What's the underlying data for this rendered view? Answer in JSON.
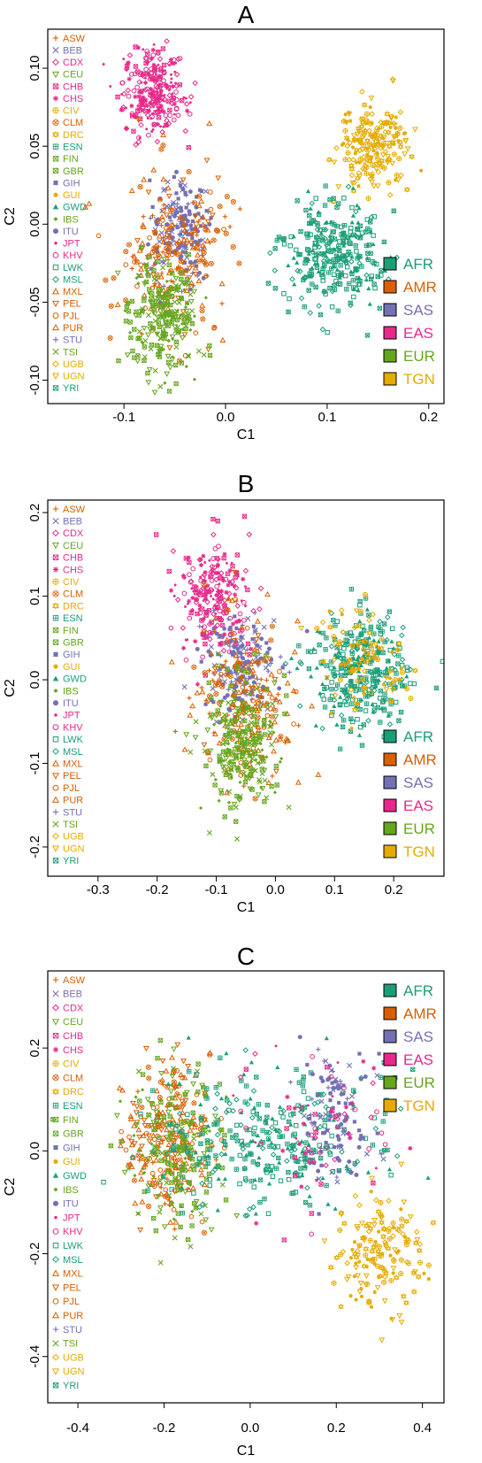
{
  "colors": {
    "AFR": "#1b9e77",
    "AMR": "#d95f02",
    "SAS": "#7570b3",
    "EAS": "#e7298a",
    "EUR": "#66a61e",
    "TGN": "#e6ab02"
  },
  "populations": [
    {
      "code": "ASW",
      "group": "AMR",
      "symbol": "plus"
    },
    {
      "code": "BEB",
      "group": "SAS",
      "symbol": "cross"
    },
    {
      "code": "CDX",
      "group": "EAS",
      "symbol": "diamond"
    },
    {
      "code": "CEU",
      "group": "EUR",
      "symbol": "triangle-down"
    },
    {
      "code": "CHB",
      "group": "EAS",
      "symbol": "square-x"
    },
    {
      "code": "CHS",
      "group": "EAS",
      "symbol": "asterisk"
    },
    {
      "code": "CIV",
      "group": "TGN",
      "symbol": "circle-plus"
    },
    {
      "code": "CLM",
      "group": "AMR",
      "symbol": "circle-x"
    },
    {
      "code": "DRC",
      "group": "TGN",
      "symbol": "star-of-david"
    },
    {
      "code": "ESN",
      "group": "AFR",
      "symbol": "square-plus"
    },
    {
      "code": "FIN",
      "group": "EUR",
      "symbol": "square-x"
    },
    {
      "code": "GBR",
      "group": "EUR",
      "symbol": "square-x"
    },
    {
      "code": "GIH",
      "group": "SAS",
      "symbol": "square-filled"
    },
    {
      "code": "GUI",
      "group": "TGN",
      "symbol": "circle-filled"
    },
    {
      "code": "GWD",
      "group": "AFR",
      "symbol": "triangle-filled"
    },
    {
      "code": "IBS",
      "group": "EUR",
      "symbol": "diamond-filled"
    },
    {
      "code": "ITU",
      "group": "SAS",
      "symbol": "circle-filled-big"
    },
    {
      "code": "JPT",
      "group": "EAS",
      "symbol": "dot"
    },
    {
      "code": "KHV",
      "group": "EAS",
      "symbol": "circle"
    },
    {
      "code": "LWK",
      "group": "AFR",
      "symbol": "square"
    },
    {
      "code": "MSL",
      "group": "AFR",
      "symbol": "diamond"
    },
    {
      "code": "MXL",
      "group": "AMR",
      "symbol": "triangle"
    },
    {
      "code": "PEL",
      "group": "AMR",
      "symbol": "triangle-down"
    },
    {
      "code": "PJL",
      "group": "AMR",
      "symbol": "circle"
    },
    {
      "code": "PUR",
      "group": "AMR",
      "symbol": "triangle"
    },
    {
      "code": "STU",
      "group": "SAS",
      "symbol": "plus"
    },
    {
      "code": "TSI",
      "group": "EUR",
      "symbol": "cross"
    },
    {
      "code": "UGB",
      "group": "TGN",
      "symbol": "diamond"
    },
    {
      "code": "UGN",
      "group": "TGN",
      "symbol": "triangle-down"
    },
    {
      "code": "YRI",
      "group": "AFR",
      "symbol": "square-x"
    }
  ],
  "chart_data": [
    {
      "panel": "A",
      "type": "scatter",
      "title": "A",
      "xlabel": "C1",
      "ylabel": "C2",
      "xlim": [
        -0.175,
        0.215
      ],
      "ylim": [
        -0.115,
        0.125
      ],
      "xticks": [
        -0.1,
        0.0,
        0.1,
        0.2
      ],
      "xtick_labels": [
        "-0.1",
        "0.0",
        "0.1",
        "0.2"
      ],
      "yticks": [
        -0.1,
        -0.05,
        0.0,
        0.05,
        0.1
      ],
      "ytick_labels": [
        "-0.10",
        "-0.05",
        "0.00",
        "0.05",
        "0.10"
      ],
      "legend_groups": [
        "AFR",
        "AMR",
        "SAS",
        "EAS",
        "EUR",
        "TGN"
      ],
      "group_legend_position": "bottom-right",
      "population_legend_position": "left",
      "clusters": [
        {
          "group": "EAS",
          "center": [
            -0.07,
            0.085
          ],
          "spread": [
            0.015,
            0.014
          ],
          "count": 260
        },
        {
          "group": "TGN",
          "center": [
            0.145,
            0.05
          ],
          "spread": [
            0.017,
            0.014
          ],
          "count": 200
        },
        {
          "group": "AFR",
          "center": [
            0.105,
            -0.018
          ],
          "spread": [
            0.025,
            0.018
          ],
          "count": 300
        },
        {
          "group": "SAS",
          "center": [
            -0.045,
            -0.005
          ],
          "spread": [
            0.014,
            0.016
          ],
          "count": 170
        },
        {
          "group": "AMR",
          "center": [
            -0.05,
            -0.02
          ],
          "spread": [
            0.028,
            0.026
          ],
          "count": 230
        },
        {
          "group": "EUR",
          "center": [
            -0.062,
            -0.06
          ],
          "spread": [
            0.017,
            0.018
          ],
          "count": 240
        }
      ]
    },
    {
      "panel": "B",
      "type": "scatter",
      "title": "B",
      "xlabel": "C1",
      "ylabel": "C2",
      "xlim": [
        -0.385,
        0.285
      ],
      "ylim": [
        -0.235,
        0.215
      ],
      "xticks": [
        -0.3,
        -0.2,
        -0.1,
        0.0,
        0.1,
        0.2
      ],
      "xtick_labels": [
        "-0.3",
        "-0.2",
        "-0.1",
        "0.0",
        "0.1",
        "0.2"
      ],
      "yticks": [
        -0.2,
        -0.1,
        0.0,
        0.1,
        0.2
      ],
      "ytick_labels": [
        "-0.2",
        "-0.1",
        "0.0",
        "0.1",
        "0.2"
      ],
      "legend_groups": [
        "AFR",
        "AMR",
        "SAS",
        "EAS",
        "EUR",
        "TGN"
      ],
      "group_legend_position": "bottom-right",
      "population_legend_position": "left",
      "clusters": [
        {
          "group": "EAS",
          "center": [
            -0.1,
            0.1
          ],
          "spread": [
            0.03,
            0.035
          ],
          "count": 230
        },
        {
          "group": "AFR",
          "center": [
            0.14,
            0.01
          ],
          "spread": [
            0.04,
            0.035
          ],
          "count": 330
        },
        {
          "group": "TGN",
          "center": [
            0.15,
            0.02
          ],
          "spread": [
            0.035,
            0.035
          ],
          "count": 90
        },
        {
          "group": "SAS",
          "center": [
            -0.06,
            0.02
          ],
          "spread": [
            0.03,
            0.03
          ],
          "count": 170
        },
        {
          "group": "AMR",
          "center": [
            -0.05,
            -0.02
          ],
          "spread": [
            0.045,
            0.045
          ],
          "count": 230
        },
        {
          "group": "EUR",
          "center": [
            -0.06,
            -0.08
          ],
          "spread": [
            0.03,
            0.04
          ],
          "count": 250
        }
      ]
    },
    {
      "panel": "C",
      "type": "scatter",
      "title": "C",
      "xlabel": "C1",
      "ylabel": "C2",
      "xlim": [
        -0.47,
        0.45
      ],
      "ylim": [
        -0.49,
        0.35
      ],
      "xticks": [
        -0.4,
        -0.2,
        0.0,
        0.2,
        0.4
      ],
      "xtick_labels": [
        "-0.4",
        "-0.2",
        "0.0",
        "0.2",
        "0.4"
      ],
      "yticks": [
        -0.4,
        -0.2,
        0.0,
        0.2
      ],
      "ytick_labels": [
        "-0.4",
        "-0.2",
        "0.0",
        "0.2"
      ],
      "legend_groups": [
        "AFR",
        "AMR",
        "SAS",
        "EAS",
        "EUR",
        "TGN"
      ],
      "group_legend_position": "top-right",
      "population_legend_position": "left",
      "clusters": [
        {
          "group": "AMR",
          "center": [
            -0.19,
            0.02
          ],
          "spread": [
            0.05,
            0.07
          ],
          "count": 260
        },
        {
          "group": "EUR",
          "center": [
            -0.17,
            0.0
          ],
          "spread": [
            0.06,
            0.08
          ],
          "count": 200
        },
        {
          "group": "AFR",
          "center": [
            0.05,
            0.02
          ],
          "spread": [
            0.13,
            0.07
          ],
          "count": 330
        },
        {
          "group": "SAS",
          "center": [
            0.2,
            0.05
          ],
          "spread": [
            0.04,
            0.08
          ],
          "count": 120
        },
        {
          "group": "EAS",
          "center": [
            0.15,
            0.05
          ],
          "spread": [
            0.09,
            0.08
          ],
          "count": 70
        },
        {
          "group": "TGN",
          "center": [
            0.3,
            -0.2
          ],
          "spread": [
            0.05,
            0.06
          ],
          "count": 160
        }
      ]
    }
  ]
}
